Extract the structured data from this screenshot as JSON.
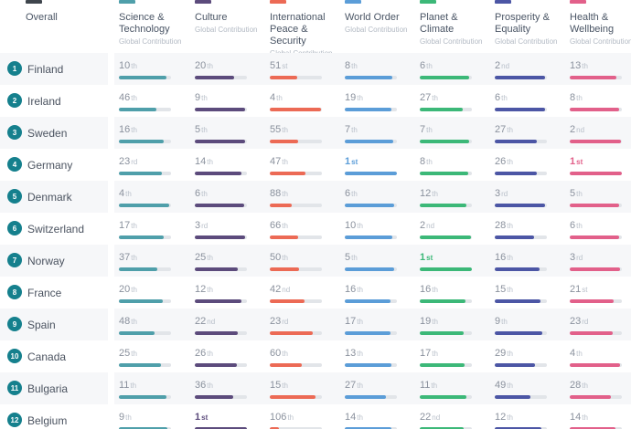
{
  "header": {
    "overall": {
      "label": "Overall",
      "color": "#3f454d"
    },
    "categories": [
      {
        "label": "Science & Technology",
        "subtitle": "Global Contribution",
        "color": "#4f9faa"
      },
      {
        "label": "Culture",
        "subtitle": "Global Contribution",
        "color": "#5c4b7c"
      },
      {
        "label": "International Peace & Security",
        "subtitle": "Global Contribution",
        "color": "#ec6a55"
      },
      {
        "label": "World Order",
        "subtitle": "Global Contribution",
        "color": "#5b9dd8"
      },
      {
        "label": "Planet & Climate",
        "subtitle": "Global Contribution",
        "color": "#3cb878"
      },
      {
        "label": "Prosperity & Equality",
        "subtitle": "Global Contribution",
        "color": "#4c56a5"
      },
      {
        "label": "Health & Wellbeing",
        "subtitle": "Global Contribution",
        "color": "#e2608a"
      }
    ]
  },
  "rows": [
    {
      "rank": "1",
      "country": "Finland",
      "cells": [
        {
          "v": "10",
          "s": "th",
          "fill": 91
        },
        {
          "v": "20",
          "s": "th",
          "fill": 76
        },
        {
          "v": "51",
          "s": "st",
          "fill": 52
        },
        {
          "v": "8",
          "s": "th",
          "fill": 92
        },
        {
          "v": "6",
          "s": "th",
          "fill": 95
        },
        {
          "v": "2",
          "s": "nd",
          "fill": 97
        },
        {
          "v": "13",
          "s": "th",
          "fill": 89
        }
      ]
    },
    {
      "rank": "2",
      "country": "Ireland",
      "cells": [
        {
          "v": "46",
          "s": "th",
          "fill": 72
        },
        {
          "v": "9",
          "s": "th",
          "fill": 96
        },
        {
          "v": "4",
          "s": "th",
          "fill": 98
        },
        {
          "v": "19",
          "s": "th",
          "fill": 90
        },
        {
          "v": "27",
          "s": "th",
          "fill": 83
        },
        {
          "v": "6",
          "s": "th",
          "fill": 96
        },
        {
          "v": "8",
          "s": "th",
          "fill": 94
        }
      ]
    },
    {
      "rank": "3",
      "country": "Sweden",
      "cells": [
        {
          "v": "16",
          "s": "th",
          "fill": 86
        },
        {
          "v": "5",
          "s": "th",
          "fill": 96
        },
        {
          "v": "55",
          "s": "th",
          "fill": 55
        },
        {
          "v": "7",
          "s": "th",
          "fill": 93
        },
        {
          "v": "7",
          "s": "th",
          "fill": 94
        },
        {
          "v": "27",
          "s": "th",
          "fill": 80
        },
        {
          "v": "2",
          "s": "nd",
          "fill": 98
        }
      ]
    },
    {
      "rank": "4",
      "country": "Germany",
      "cells": [
        {
          "v": "23",
          "s": "rd",
          "fill": 82
        },
        {
          "v": "14",
          "s": "th",
          "fill": 89
        },
        {
          "v": "47",
          "s": "th",
          "fill": 68
        },
        {
          "v": "1",
          "s": "st",
          "fill": 100
        },
        {
          "v": "8",
          "s": "th",
          "fill": 93
        },
        {
          "v": "26",
          "s": "th",
          "fill": 80
        },
        {
          "v": "1",
          "s": "st",
          "fill": 100
        }
      ]
    },
    {
      "rank": "5",
      "country": "Denmark",
      "cells": [
        {
          "v": "4",
          "s": "th",
          "fill": 97
        },
        {
          "v": "6",
          "s": "th",
          "fill": 94
        },
        {
          "v": "88",
          "s": "th",
          "fill": 42
        },
        {
          "v": "6",
          "s": "th",
          "fill": 94
        },
        {
          "v": "12",
          "s": "th",
          "fill": 89
        },
        {
          "v": "3",
          "s": "rd",
          "fill": 97
        },
        {
          "v": "5",
          "s": "th",
          "fill": 95
        }
      ]
    },
    {
      "rank": "6",
      "country": "Switzerland",
      "cells": [
        {
          "v": "17",
          "s": "th",
          "fill": 86
        },
        {
          "v": "3",
          "s": "rd",
          "fill": 97
        },
        {
          "v": "66",
          "s": "th",
          "fill": 55
        },
        {
          "v": "10",
          "s": "th",
          "fill": 91
        },
        {
          "v": "2",
          "s": "nd",
          "fill": 98
        },
        {
          "v": "28",
          "s": "th",
          "fill": 76
        },
        {
          "v": "6",
          "s": "th",
          "fill": 94
        }
      ]
    },
    {
      "rank": "7",
      "country": "Norway",
      "cells": [
        {
          "v": "37",
          "s": "th",
          "fill": 74
        },
        {
          "v": "25",
          "s": "th",
          "fill": 83
        },
        {
          "v": "50",
          "s": "th",
          "fill": 57
        },
        {
          "v": "5",
          "s": "th",
          "fill": 95
        },
        {
          "v": "1",
          "s": "st",
          "fill": 100
        },
        {
          "v": "16",
          "s": "th",
          "fill": 86
        },
        {
          "v": "3",
          "s": "rd",
          "fill": 97
        }
      ]
    },
    {
      "rank": "8",
      "country": "France",
      "cells": [
        {
          "v": "20",
          "s": "th",
          "fill": 84
        },
        {
          "v": "12",
          "s": "th",
          "fill": 90
        },
        {
          "v": "42",
          "s": "nd",
          "fill": 66
        },
        {
          "v": "16",
          "s": "th",
          "fill": 88
        },
        {
          "v": "16",
          "s": "th",
          "fill": 88
        },
        {
          "v": "15",
          "s": "th",
          "fill": 87
        },
        {
          "v": "21",
          "s": "st",
          "fill": 85
        }
      ]
    },
    {
      "rank": "9",
      "country": "Spain",
      "cells": [
        {
          "v": "48",
          "s": "th",
          "fill": 69
        },
        {
          "v": "22",
          "s": "nd",
          "fill": 83
        },
        {
          "v": "23",
          "s": "rd",
          "fill": 82
        },
        {
          "v": "17",
          "s": "th",
          "fill": 87
        },
        {
          "v": "19",
          "s": "th",
          "fill": 85
        },
        {
          "v": "9",
          "s": "th",
          "fill": 92
        },
        {
          "v": "23",
          "s": "rd",
          "fill": 83
        }
      ]
    },
    {
      "rank": "10",
      "country": "Canada",
      "cells": [
        {
          "v": "25",
          "s": "th",
          "fill": 81
        },
        {
          "v": "26",
          "s": "th",
          "fill": 80
        },
        {
          "v": "60",
          "s": "th",
          "fill": 61
        },
        {
          "v": "13",
          "s": "th",
          "fill": 90
        },
        {
          "v": "17",
          "s": "th",
          "fill": 86
        },
        {
          "v": "29",
          "s": "th",
          "fill": 77
        },
        {
          "v": "4",
          "s": "th",
          "fill": 97
        }
      ]
    },
    {
      "rank": "11",
      "country": "Bulgaria",
      "cells": [
        {
          "v": "11",
          "s": "th",
          "fill": 92
        },
        {
          "v": "36",
          "s": "th",
          "fill": 73
        },
        {
          "v": "15",
          "s": "th",
          "fill": 88
        },
        {
          "v": "27",
          "s": "th",
          "fill": 79
        },
        {
          "v": "11",
          "s": "th",
          "fill": 90
        },
        {
          "v": "49",
          "s": "th",
          "fill": 68
        },
        {
          "v": "28",
          "s": "th",
          "fill": 79
        }
      ]
    },
    {
      "rank": "12",
      "country": "Belgium",
      "cells": [
        {
          "v": "9",
          "s": "th",
          "fill": 93
        },
        {
          "v": "1",
          "s": "st",
          "fill": 100
        },
        {
          "v": "106",
          "s": "th",
          "fill": 17
        },
        {
          "v": "14",
          "s": "th",
          "fill": 89
        },
        {
          "v": "22",
          "s": "nd",
          "fill": 84
        },
        {
          "v": "12",
          "s": "th",
          "fill": 90
        },
        {
          "v": "14",
          "s": "th",
          "fill": 88
        }
      ]
    }
  ]
}
